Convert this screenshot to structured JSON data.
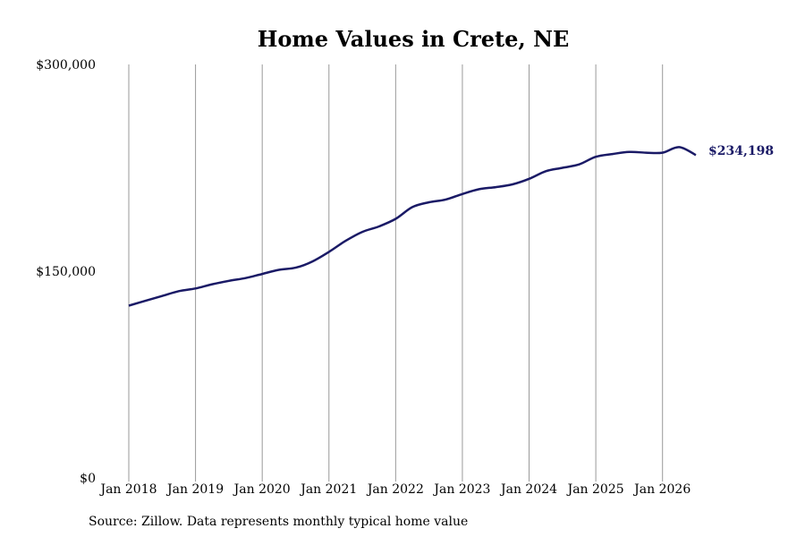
{
  "chart_data": {
    "type": "line",
    "title": "Home Values in Crete, NE",
    "source": "Source: Zillow. Data represents monthly typical home value",
    "line_color": "#1a1a66",
    "grid_color": "#9a9a9a",
    "ylim": [
      0,
      300000
    ],
    "y_ticks": [
      {
        "value": 0,
        "label": "$0"
      },
      {
        "value": 150000,
        "label": "$150,000"
      },
      {
        "value": 300000,
        "label": "$300,000"
      }
    ],
    "x_ticks": [
      {
        "value": 2018.0,
        "label": "Jan 2018"
      },
      {
        "value": 2019.0,
        "label": "Jan 2019"
      },
      {
        "value": 2020.0,
        "label": "Jan 2020"
      },
      {
        "value": 2021.0,
        "label": "Jan 2021"
      },
      {
        "value": 2022.0,
        "label": "Jan 2022"
      },
      {
        "value": 2023.0,
        "label": "Jan 2023"
      },
      {
        "value": 2024.0,
        "label": "Jan 2024"
      },
      {
        "value": 2025.0,
        "label": "Jan 2025"
      },
      {
        "value": 2026.0,
        "label": "Jan 2026"
      }
    ],
    "xlim": [
      2018.0,
      2026.5
    ],
    "end_label": "$234,198",
    "series": [
      {
        "points": [
          [
            2018.0,
            125000
          ],
          [
            2018.25,
            128500
          ],
          [
            2018.5,
            132000
          ],
          [
            2018.75,
            135500
          ],
          [
            2019.0,
            137500
          ],
          [
            2019.25,
            140500
          ],
          [
            2019.5,
            143000
          ],
          [
            2019.75,
            145000
          ],
          [
            2020.0,
            148000
          ],
          [
            2020.25,
            151000
          ],
          [
            2020.5,
            152500
          ],
          [
            2020.75,
            157000
          ],
          [
            2021.0,
            164000
          ],
          [
            2021.25,
            172000
          ],
          [
            2021.5,
            178500
          ],
          [
            2021.75,
            182500
          ],
          [
            2022.0,
            188000
          ],
          [
            2022.25,
            196500
          ],
          [
            2022.5,
            200000
          ],
          [
            2022.75,
            202000
          ],
          [
            2023.0,
            206000
          ],
          [
            2023.25,
            209500
          ],
          [
            2023.5,
            211000
          ],
          [
            2023.75,
            213000
          ],
          [
            2024.0,
            217000
          ],
          [
            2024.25,
            222500
          ],
          [
            2024.5,
            225000
          ],
          [
            2024.75,
            227500
          ],
          [
            2025.0,
            233000
          ],
          [
            2025.25,
            235000
          ],
          [
            2025.5,
            236500
          ],
          [
            2025.75,
            236000
          ],
          [
            2026.0,
            236000
          ],
          [
            2026.25,
            240000
          ],
          [
            2026.5,
            234198
          ]
        ]
      }
    ]
  }
}
